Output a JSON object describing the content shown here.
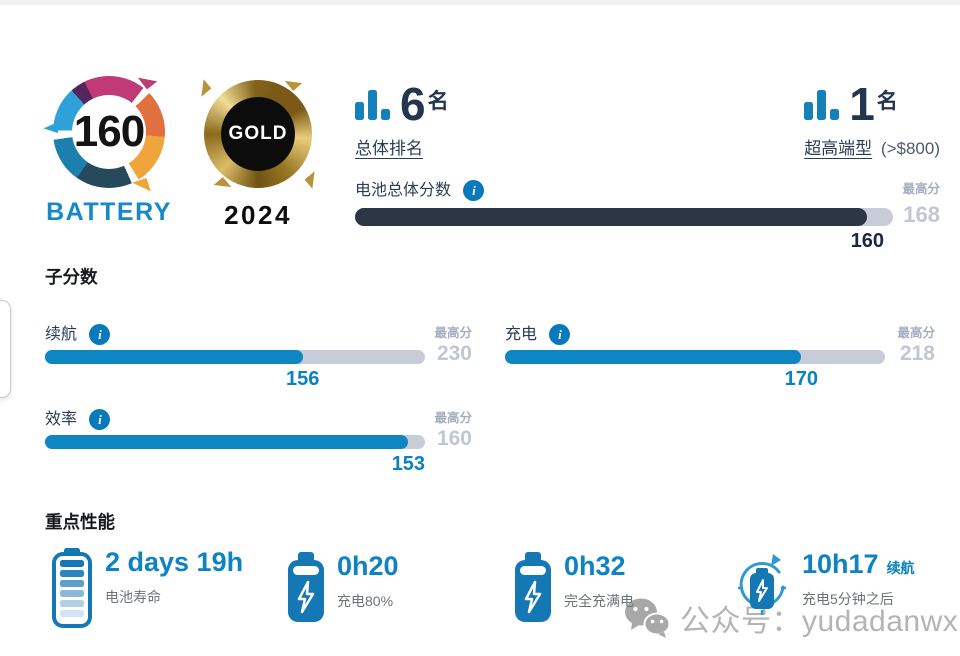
{
  "logo": {
    "score": "160",
    "label": "BATTERY"
  },
  "award": {
    "medal": "GOLD",
    "year": "2024"
  },
  "rankings": [
    {
      "value": "6",
      "unit": "名",
      "category": "总体排名",
      "note": ""
    },
    {
      "value": "1",
      "unit": "名",
      "category": "超高端型",
      "note": "(>$800)"
    }
  ],
  "overall": {
    "label": "电池总体分数",
    "info": "i",
    "value": 160,
    "max": 168,
    "max_label": "最高分"
  },
  "subscores": {
    "title": "子分数",
    "max_label": "最高分",
    "items": [
      {
        "label": "续航",
        "info": "i",
        "value": 156,
        "max": 230
      },
      {
        "label": "充电",
        "info": "i",
        "value": 170,
        "max": 218
      },
      {
        "label": "效率",
        "info": "i",
        "value": 153,
        "max": 160
      }
    ]
  },
  "highlights": {
    "title": "重点性能",
    "items": [
      {
        "icon": "battery-gauge-icon",
        "value": "2 days 19h",
        "suffix": "",
        "label": "电池寿命"
      },
      {
        "icon": "battery-bolt-icon",
        "value": "0h20",
        "suffix": "",
        "label": "充电80%"
      },
      {
        "icon": "battery-bolt-icon",
        "value": "0h32",
        "suffix": "",
        "label": "完全充满电"
      },
      {
        "icon": "battery-refresh-icon",
        "value": "10h17",
        "suffix": "续航",
        "label": "充电5分钟之后"
      }
    ]
  },
  "watermark": {
    "icon": "wechat-icon",
    "text": "公众号：yudadanwx"
  },
  "chart_data": {
    "type": "bar",
    "categories": [
      "电池总体分数",
      "续航",
      "充电",
      "效率"
    ],
    "values": [
      160,
      156,
      170,
      153
    ],
    "max_values": [
      168,
      230,
      218,
      160
    ],
    "title": "电池总体分数",
    "bar_colors": [
      "#2d3645",
      "#0e86c2",
      "#0e86c2",
      "#0e86c2"
    ]
  },
  "colors": {
    "accent_blue": "#0e86c4",
    "navy": "#24364e",
    "overall_fill": "#2d3645",
    "track": "#c8ccd8",
    "muted": "#a6adc0",
    "max_value": "#c0c6d4",
    "stat_label": "#6d737b",
    "watermark": "#b4b4b4",
    "gold": "#b8933c",
    "battery_logo_blue": "#1689ca"
  }
}
